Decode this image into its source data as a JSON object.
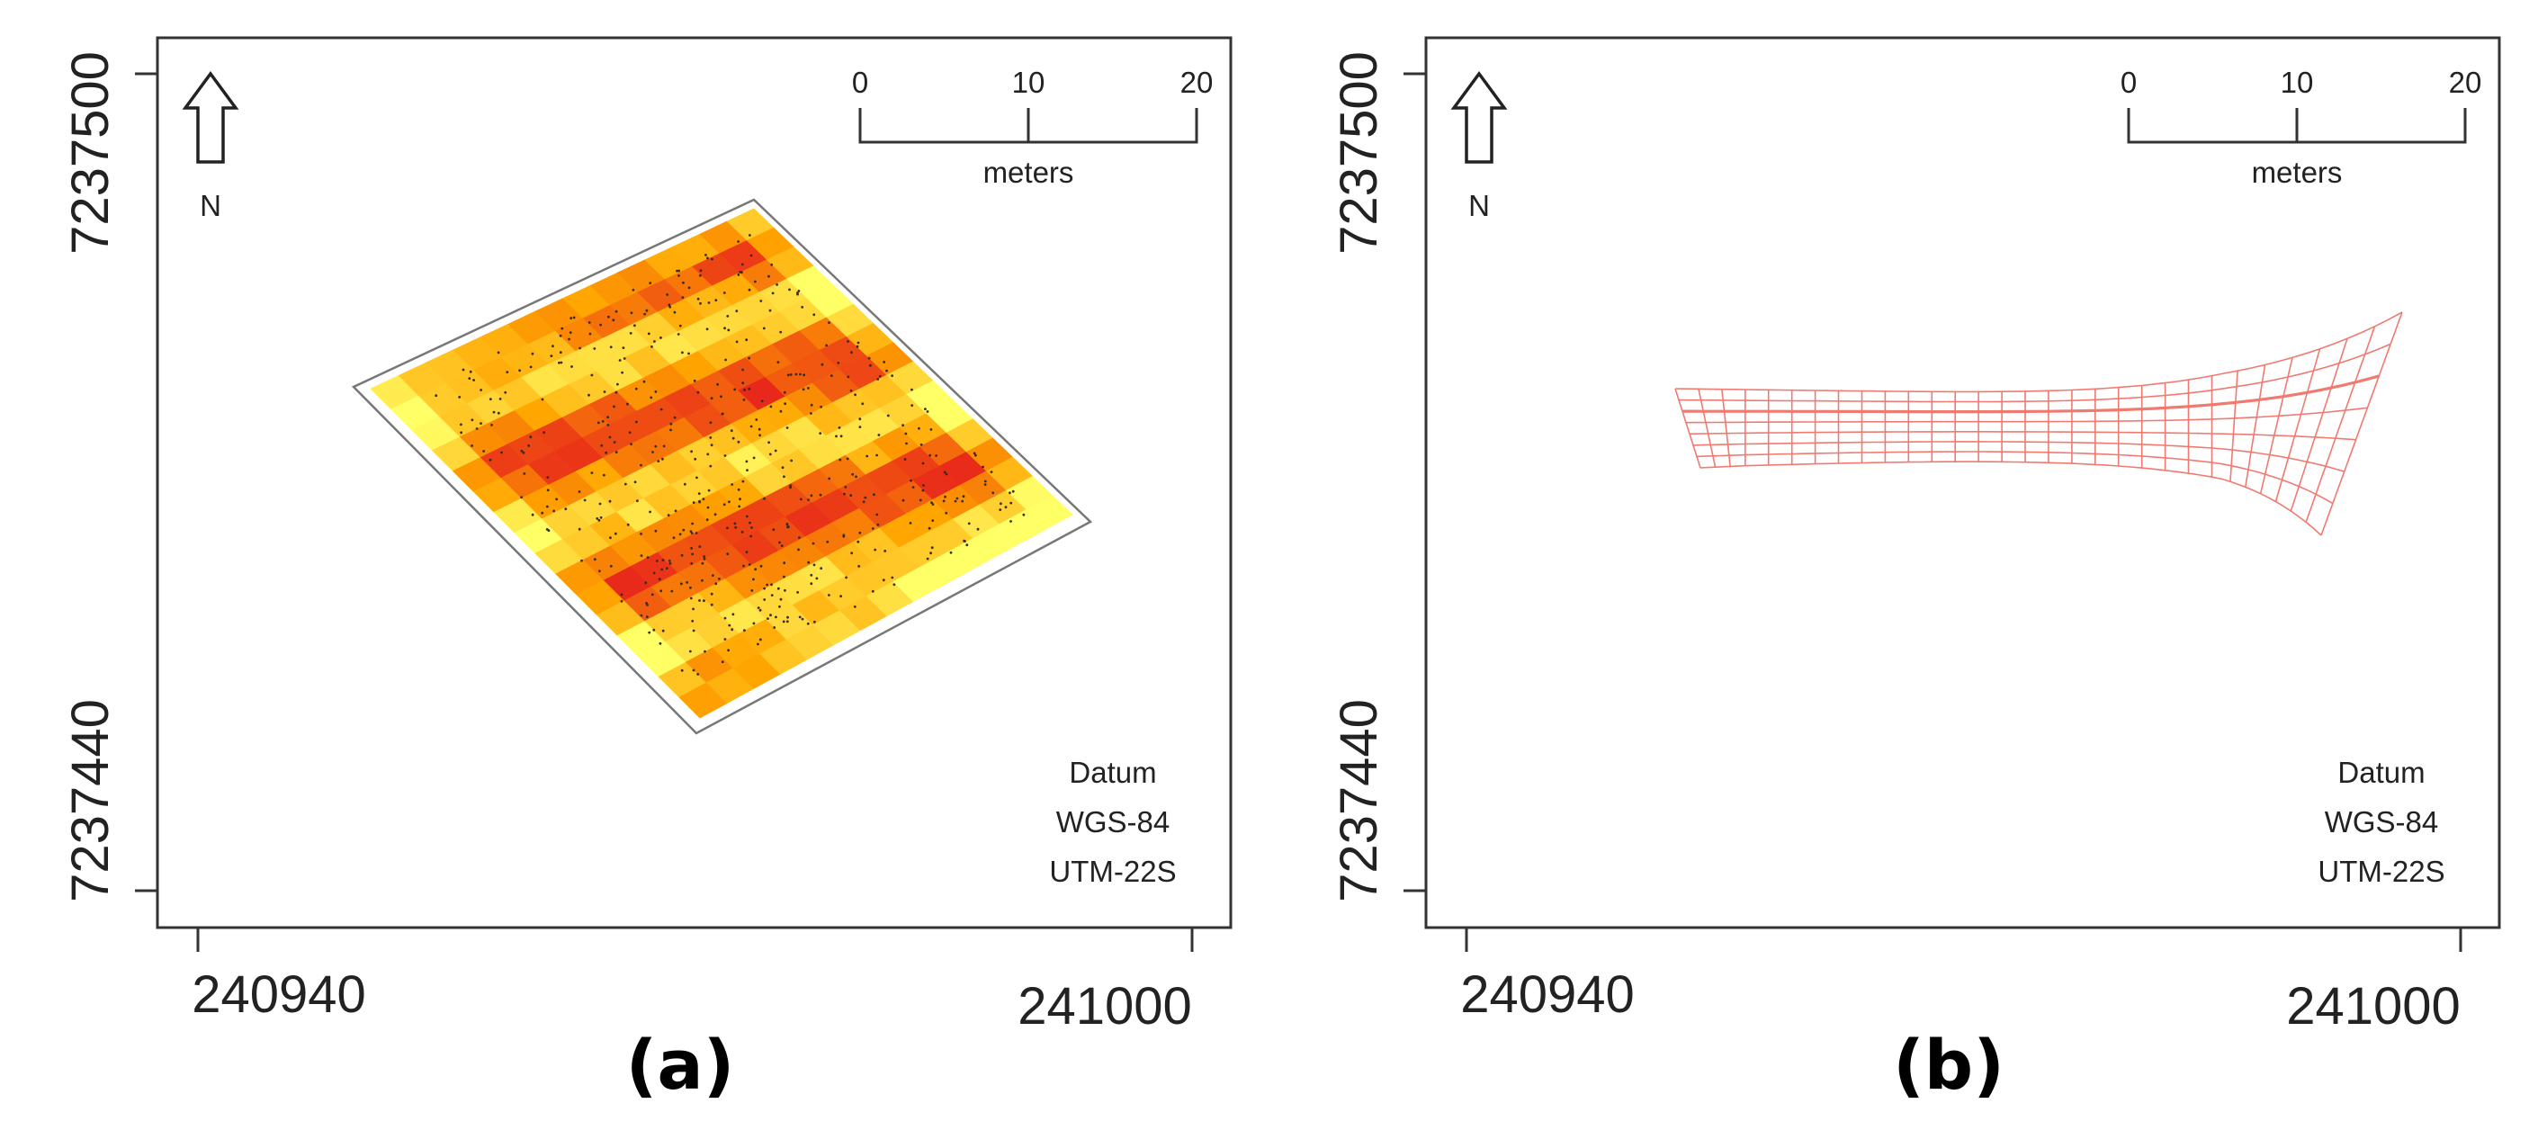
{
  "panels": [
    {
      "id": "a",
      "label": "(a)",
      "x_ticks": [
        "240940",
        "241000"
      ],
      "y_ticks": [
        "7237500",
        "7237440"
      ],
      "north_label": "N",
      "scale_bar": {
        "ticks": [
          "0",
          "10",
          "20"
        ],
        "unit": "meters"
      },
      "datum": [
        "Datum",
        "WGS-84",
        "UTM-22S"
      ]
    },
    {
      "id": "b",
      "label": "(b)",
      "x_ticks": [
        "240940",
        "241000"
      ],
      "y_ticks": [
        "7237500",
        "7237440"
      ],
      "north_label": "N",
      "scale_bar": {
        "ticks": [
          "0",
          "10",
          "20"
        ],
        "unit": "meters"
      },
      "datum": [
        "Datum",
        "WGS-84",
        "UTM-22S"
      ]
    }
  ],
  "colors": {
    "heat_low": "#ffff66",
    "heat_mid": "#ffa500",
    "heat_high": "#e8281a",
    "mesh": "#f07a70"
  }
}
